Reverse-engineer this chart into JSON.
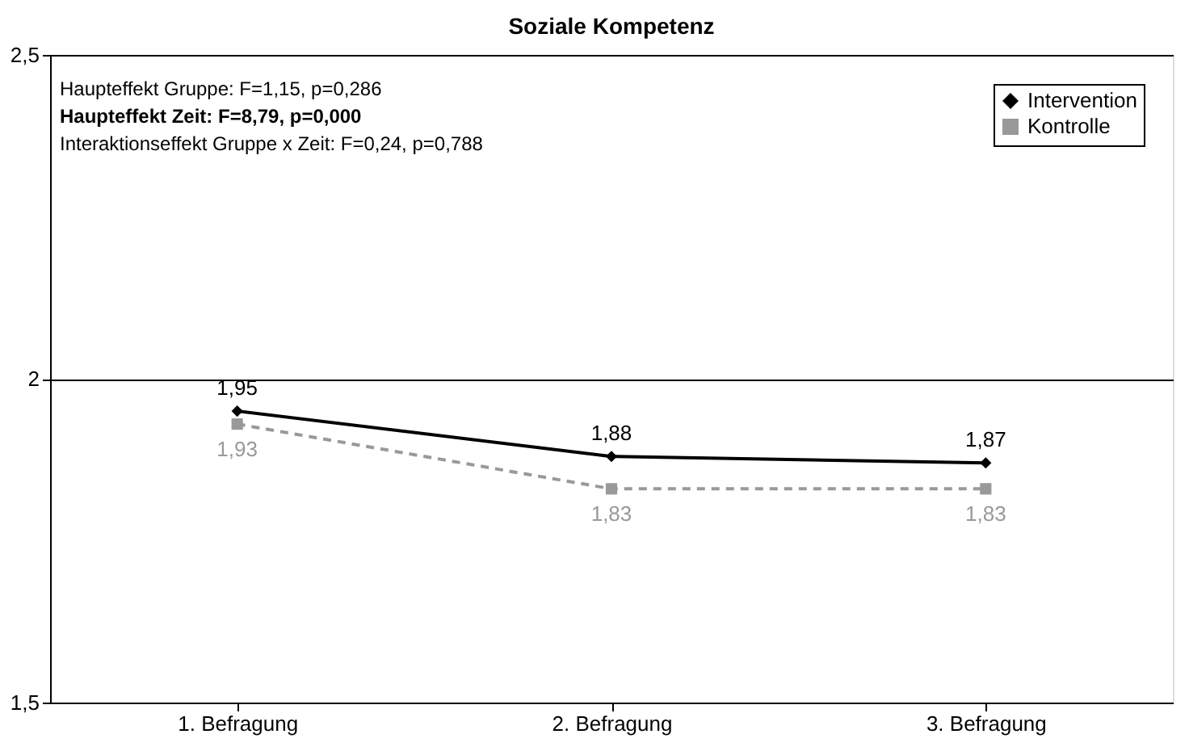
{
  "chart_data": {
    "type": "line",
    "title": "Soziale Kompetenz",
    "categories": [
      "1. Befragung",
      "2. Befragung",
      "3. Befragung"
    ],
    "series": [
      {
        "name": "Intervention",
        "color": "#000000",
        "values": [
          1.95,
          1.88,
          1.87
        ],
        "value_labels": [
          "1,95",
          "1,88",
          "1,87"
        ],
        "marker": "diamond",
        "line_style": "solid"
      },
      {
        "name": "Kontrolle",
        "color": "#999999",
        "values": [
          1.93,
          1.83,
          1.83
        ],
        "value_labels": [
          "1,93",
          "1,83",
          "1,83"
        ],
        "marker": "square",
        "line_style": "dashed"
      }
    ],
    "ylim": [
      1.5,
      2.5
    ],
    "yticks": [
      {
        "value": 1.5,
        "label": "1,5"
      },
      {
        "value": 2,
        "label": "2"
      },
      {
        "value": 2.5,
        "label": "2,5"
      }
    ],
    "grid": "y",
    "legend": "top right",
    "annotations": [
      "Haupteffekt Gruppe: F=1,15, p=0,286",
      "Haupteffekt Zeit: F=8,79, p=0,000",
      "Interaktionseffekt Gruppe x Zeit: F=0,24, p=0,788"
    ]
  }
}
